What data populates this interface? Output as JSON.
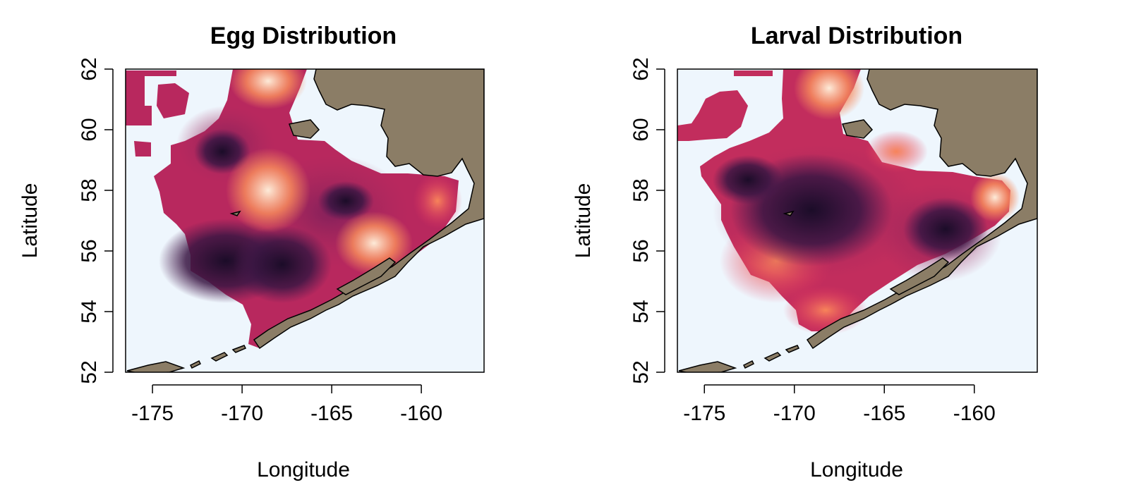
{
  "maps": [
    {
      "title": "Egg Distribution",
      "xlabel": "Longitude",
      "ylabel": "Latitude",
      "xticks": [
        "-175",
        "-170",
        "-165",
        "-160"
      ],
      "yticks": [
        "52",
        "54",
        "56",
        "58",
        "60",
        "62"
      ],
      "xlim": [
        -176.5,
        -156.5
      ],
      "ylim": [
        52,
        62
      ]
    },
    {
      "title": "Larval Distribution",
      "xlabel": "Longitude",
      "ylabel": "Latitude",
      "xticks": [
        "-175",
        "-170",
        "-165",
        "-160"
      ],
      "yticks": [
        "52",
        "54",
        "56",
        "58",
        "60",
        "62"
      ],
      "xlim": [
        -176.5,
        -156.5
      ],
      "ylim": [
        52,
        62
      ]
    }
  ],
  "colors": {
    "ocean": "#eef6fd",
    "land": "#8b7d66",
    "density_low": "#fbe6d4",
    "density_mid": "#e3335f",
    "density_high": "#1b0c28"
  }
}
